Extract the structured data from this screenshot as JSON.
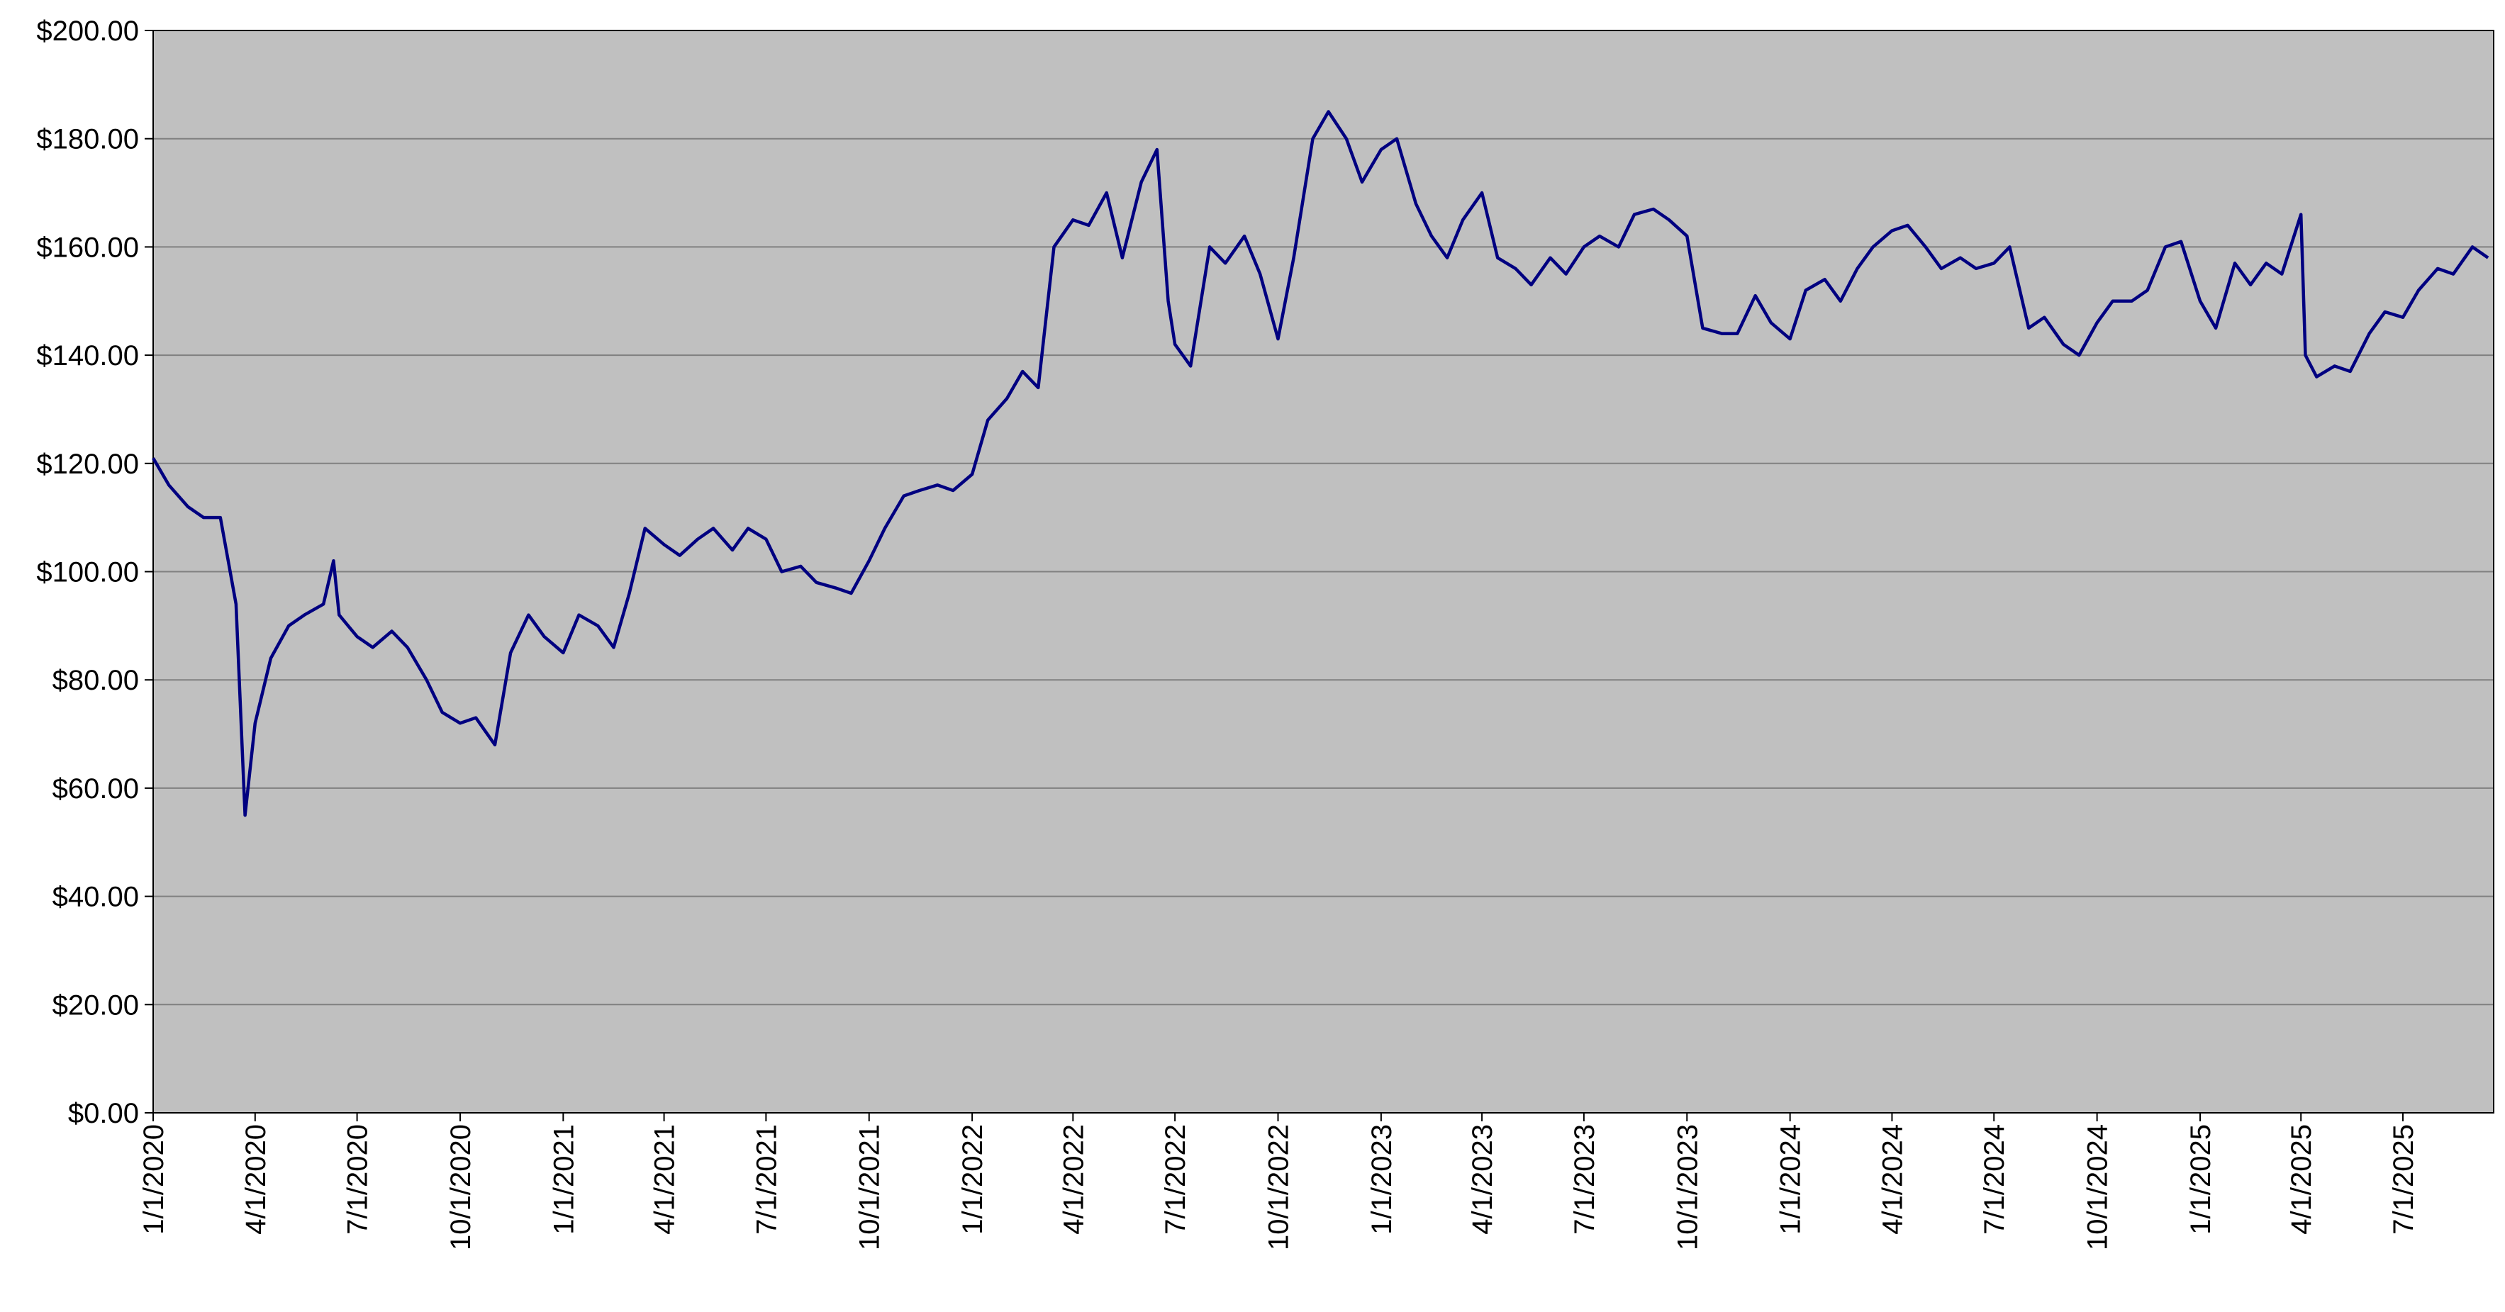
{
  "chart_data": {
    "type": "line",
    "x": [
      "1/1/2020",
      "1/15/2020",
      "2/1/2020",
      "2/15/2020",
      "3/1/2020",
      "3/15/2020",
      "3/23/2020",
      "4/1/2020",
      "4/15/2020",
      "5/1/2020",
      "5/15/2020",
      "6/1/2020",
      "6/10/2020",
      "6/15/2020",
      "7/1/2020",
      "7/15/2020",
      "8/1/2020",
      "8/15/2020",
      "9/1/2020",
      "9/15/2020",
      "10/1/2020",
      "10/15/2020",
      "11/1/2020",
      "11/15/2020",
      "12/1/2020",
      "12/15/2020",
      "1/1/2021",
      "1/15/2021",
      "2/1/2021",
      "2/15/2021",
      "3/1/2021",
      "3/15/2021",
      "4/1/2021",
      "4/15/2021",
      "5/1/2021",
      "5/15/2021",
      "6/1/2021",
      "6/15/2021",
      "7/1/2021",
      "7/15/2021",
      "8/1/2021",
      "8/15/2021",
      "9/1/2021",
      "9/15/2021",
      "10/1/2021",
      "10/15/2021",
      "11/1/2021",
      "11/15/2021",
      "12/1/2021",
      "12/15/2021",
      "1/1/2022",
      "1/15/2022",
      "2/1/2022",
      "2/15/2022",
      "3/1/2022",
      "3/15/2022",
      "4/1/2022",
      "4/15/2022",
      "5/1/2022",
      "5/15/2022",
      "6/1/2022",
      "6/15/2022",
      "6/25/2022",
      "7/1/2022",
      "7/15/2022",
      "8/1/2022",
      "8/15/2022",
      "9/1/2022",
      "9/15/2022",
      "10/1/2022",
      "10/15/2022",
      "11/1/2022",
      "11/15/2022",
      "12/1/2022",
      "12/15/2022",
      "1/1/2023",
      "1/15/2023",
      "2/1/2023",
      "2/15/2023",
      "3/1/2023",
      "3/15/2023",
      "4/1/2023",
      "4/15/2023",
      "5/1/2023",
      "5/15/2023",
      "6/1/2023",
      "6/15/2023",
      "7/1/2023",
      "7/15/2023",
      "8/1/2023",
      "8/15/2023",
      "9/1/2023",
      "9/15/2023",
      "10/1/2023",
      "10/15/2023",
      "11/1/2023",
      "11/15/2023",
      "12/1/2023",
      "12/15/2023",
      "1/1/2024",
      "1/15/2024",
      "2/1/2024",
      "2/15/2024",
      "3/1/2024",
      "3/15/2024",
      "4/1/2024",
      "4/15/2024",
      "5/1/2024",
      "5/15/2024",
      "6/1/2024",
      "6/15/2024",
      "7/1/2024",
      "7/15/2024",
      "8/1/2024",
      "8/15/2024",
      "9/1/2024",
      "9/15/2024",
      "10/1/2024",
      "10/15/2024",
      "11/1/2024",
      "11/15/2024",
      "12/1/2024",
      "12/15/2024",
      "1/1/2025",
      "1/15/2025",
      "2/1/2025",
      "2/15/2025",
      "3/1/2025",
      "3/15/2025",
      "4/1/2025",
      "4/5/2025",
      "4/15/2025",
      "5/1/2025",
      "5/15/2025",
      "6/1/2025",
      "6/15/2025",
      "7/1/2025",
      "7/15/2025",
      "8/1/2025",
      "8/15/2025",
      "9/1/2025",
      "9/15/2025"
    ],
    "series": [
      {
        "color": "#000080",
        "values": [
          121,
          116,
          112,
          110,
          110,
          94,
          55,
          72,
          84,
          90,
          92,
          94,
          102,
          92,
          88,
          86,
          89,
          86,
          80,
          74,
          72,
          73,
          68,
          85,
          92,
          88,
          85,
          92,
          90,
          86,
          96,
          108,
          105,
          103,
          106,
          108,
          104,
          108,
          106,
          100,
          101,
          98,
          97,
          96,
          102,
          108,
          114,
          115,
          116,
          115,
          118,
          128,
          132,
          137,
          134,
          160,
          165,
          164,
          170,
          158,
          172,
          178,
          150,
          142,
          138,
          160,
          157,
          162,
          155,
          143,
          158,
          180,
          185,
          180,
          172,
          178,
          180,
          168,
          162,
          158,
          165,
          170,
          158,
          156,
          153,
          158,
          155,
          160,
          162,
          160,
          166,
          167,
          165,
          162,
          145,
          144,
          144,
          151,
          146,
          143,
          152,
          154,
          150,
          156,
          160,
          163,
          164,
          160,
          156,
          158,
          156,
          157,
          160,
          145,
          147,
          142,
          140,
          146,
          150,
          150,
          152,
          160,
          161,
          150,
          145,
          157,
          153,
          157,
          155,
          166,
          140,
          136,
          138,
          137,
          144,
          148,
          147,
          152,
          156,
          155,
          160,
          158
        ]
      }
    ],
    "xlim": [
      "1/1/2020",
      "9/20/2025"
    ],
    "xticks": [
      "1/1/2020",
      "4/1/2020",
      "7/1/2020",
      "10/1/2020",
      "1/1/2021",
      "4/1/2021",
      "7/1/2021",
      "10/1/2021",
      "1/1/2022",
      "4/1/2022",
      "7/1/2022",
      "10/1/2022",
      "1/1/2023",
      "4/1/2023",
      "7/1/2023",
      "10/1/2023",
      "1/1/2024",
      "4/1/2024",
      "7/1/2024",
      "10/1/2024",
      "1/1/2025",
      "4/1/2025",
      "7/1/2025"
    ],
    "ylim": [
      0,
      200
    ],
    "yticks": [
      {
        "value": 0,
        "label": "$0.00"
      },
      {
        "value": 20,
        "label": "$20.00"
      },
      {
        "value": 40,
        "label": "$40.00"
      },
      {
        "value": 60,
        "label": "$60.00"
      },
      {
        "value": 80,
        "label": "$80.00"
      },
      {
        "value": 100,
        "label": "$100.00"
      },
      {
        "value": 120,
        "label": "$120.00"
      },
      {
        "value": 140,
        "label": "$140.00"
      },
      {
        "value": 160,
        "label": "$160.00"
      },
      {
        "value": 180,
        "label": "$180.00"
      },
      {
        "value": 200,
        "label": "$200.00"
      }
    ],
    "grid": true
  }
}
